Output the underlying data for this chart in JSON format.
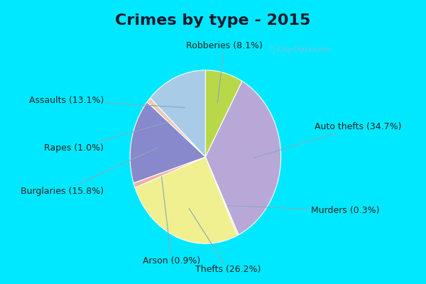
{
  "title": "Crimes by type - 2015",
  "labels_ordered": [
    "Robberies",
    "Auto thefts",
    "Murders",
    "Thefts",
    "Arson",
    "Burglaries",
    "Rapes",
    "Assaults"
  ],
  "values_ordered": [
    8.1,
    34.7,
    0.3,
    26.2,
    0.9,
    15.8,
    1.0,
    13.1
  ],
  "colors_ordered": [
    "#b8d84a",
    "#b8a8d8",
    "#d8d8a0",
    "#f0f090",
    "#f0b0a0",
    "#8888cc",
    "#f0c8b0",
    "#a8cce8"
  ],
  "background_border": "#00e8ff",
  "background_inner": "#c8e8d0",
  "title_fontsize": 16,
  "label_fontsize": 9,
  "title_color": "#1a1a2e",
  "label_color": "#222222",
  "line_color": "#88aabb",
  "border_width": 8,
  "watermark": "City-Data.com"
}
